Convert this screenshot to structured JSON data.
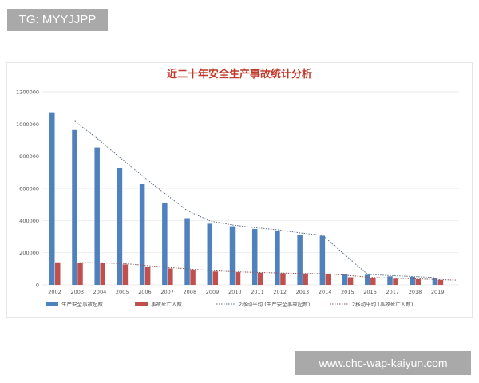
{
  "watermarks": {
    "top_left": "TG: MYYJJPP",
    "bottom_right": "www.chc-wap-kaiyun.com"
  },
  "colors": {
    "accidents_bar": "#4f81bd",
    "deaths_bar": "#c0504d",
    "title": "#c0392b",
    "grid": "#e5e5e5"
  },
  "chart_data": {
    "type": "bar",
    "title": "近二十年安全生产事故统计分析",
    "xlabel": "",
    "ylabel": "",
    "categories": [
      "2002",
      "2003",
      "2004",
      "2005",
      "2006",
      "2007",
      "2008",
      "2009",
      "2010",
      "2011",
      "2012",
      "2013",
      "2014",
      "2015",
      "2016",
      "2017",
      "2018",
      "2019"
    ],
    "series": [
      {
        "name": "生产安全事故起数",
        "type": "bar",
        "values": [
          1073000,
          963000,
          855000,
          728000,
          627000,
          507000,
          414000,
          380000,
          364000,
          347000,
          337000,
          309000,
          305000,
          67000,
          63000,
          53000,
          51000,
          40000
        ]
      },
      {
        "name": "事故死亡人数",
        "type": "bar",
        "values": [
          140000,
          137000,
          137000,
          127000,
          112000,
          102000,
          92000,
          83000,
          79000,
          75000,
          72000,
          70000,
          68000,
          47000,
          44000,
          38000,
          35000,
          30000
        ]
      },
      {
        "name": "2移动平均 (生产安全事故起数)",
        "type": "trendline",
        "values": [
          null,
          1018000,
          909000,
          791500,
          677500,
          567000,
          460500,
          397000,
          372000,
          355500,
          342000,
          323000,
          307000,
          186000,
          65000,
          58000,
          52000,
          45500
        ]
      },
      {
        "name": "2移动平均 (事故死亡人数)",
        "type": "trendline",
        "values": [
          null,
          138500,
          137000,
          132000,
          119500,
          107000,
          97000,
          87500,
          81000,
          77000,
          73500,
          71000,
          69000,
          57500,
          45500,
          41000,
          36500,
          32500
        ]
      }
    ],
    "yticks": [
      "1200000",
      "1000000",
      "800000",
      "600000",
      "400000",
      "200000",
      "0"
    ],
    "ylim": [
      0,
      1200000
    ],
    "grid": true,
    "legend_position": "bottom"
  }
}
